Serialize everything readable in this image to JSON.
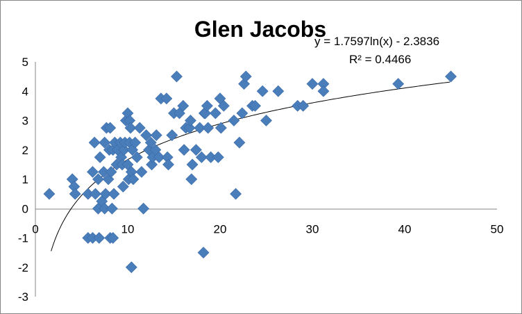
{
  "chart_data": {
    "type": "scatter",
    "title": "Glen Jacobs",
    "xlabel": "",
    "ylabel": "",
    "xlim": [
      0,
      50
    ],
    "ylim": [
      -3,
      5
    ],
    "x_ticks": [
      "0",
      "10",
      "20",
      "30",
      "40",
      "50"
    ],
    "y_ticks": [
      "5",
      "4",
      "3",
      "2",
      "1",
      "0",
      "-1",
      "-2",
      "-3"
    ],
    "grid": false,
    "legend": "none",
    "marker_color": "#4a7ebb",
    "trendline": {
      "type": "logarithmic",
      "a": 1.7597,
      "b": -2.3836,
      "x_range": [
        1.7,
        44.9
      ],
      "equation_label": "y = 1.7597ln(x) - 2.3836",
      "r2_label": "R² = 0.4466"
    },
    "points": [
      [
        1.5,
        0.5
      ],
      [
        4.0,
        1.0
      ],
      [
        4.2,
        0.75
      ],
      [
        4.3,
        0.5
      ],
      [
        5.7,
        0.5
      ],
      [
        5.7,
        -1.0
      ],
      [
        6.2,
        1.25
      ],
      [
        6.2,
        -1.0
      ],
      [
        6.4,
        2.25
      ],
      [
        6.5,
        0.5
      ],
      [
        6.8,
        1.0
      ],
      [
        6.8,
        0.0
      ],
      [
        6.9,
        -1.0
      ],
      [
        7.0,
        1.75
      ],
      [
        7.2,
        0.25
      ],
      [
        7.4,
        1.25
      ],
      [
        7.5,
        0.0
      ],
      [
        7.5,
        2.25
      ],
      [
        7.6,
        0.5
      ],
      [
        7.7,
        2.75
      ],
      [
        7.9,
        1.0
      ],
      [
        8.0,
        2.0
      ],
      [
        8.1,
        2.75
      ],
      [
        8.1,
        -1.0
      ],
      [
        8.2,
        1.25
      ],
      [
        8.3,
        0.0
      ],
      [
        8.4,
        2.0
      ],
      [
        8.4,
        -1.0
      ],
      [
        8.5,
        0.5
      ],
      [
        8.6,
        2.25
      ],
      [
        8.8,
        1.5
      ],
      [
        8.9,
        2.0
      ],
      [
        9.2,
        2.25
      ],
      [
        9.3,
        1.75
      ],
      [
        9.4,
        1.5
      ],
      [
        9.5,
        0.75
      ],
      [
        9.6,
        2.0
      ],
      [
        9.7,
        2.25
      ],
      [
        9.8,
        3.0
      ],
      [
        10.0,
        3.25
      ],
      [
        10.0,
        1.5
      ],
      [
        10.1,
        1.0
      ],
      [
        10.2,
        2.25
      ],
      [
        10.2,
        3.0
      ],
      [
        10.3,
        2.75
      ],
      [
        10.4,
        1.25
      ],
      [
        10.4,
        -2.0
      ],
      [
        10.5,
        2.0
      ],
      [
        10.6,
        1.0
      ],
      [
        10.8,
        2.25
      ],
      [
        11.0,
        1.75
      ],
      [
        11.3,
        2.75
      ],
      [
        11.5,
        1.25
      ],
      [
        11.7,
        0.0
      ],
      [
        12.0,
        2.5
      ],
      [
        12.3,
        2.0
      ],
      [
        12.5,
        2.25
      ],
      [
        12.6,
        1.5
      ],
      [
        12.7,
        1.75
      ],
      [
        13.0,
        2.0
      ],
      [
        13.1,
        2.5
      ],
      [
        13.4,
        1.75
      ],
      [
        13.6,
        3.75
      ],
      [
        14.2,
        3.75
      ],
      [
        14.3,
        1.75
      ],
      [
        14.4,
        1.5
      ],
      [
        14.8,
        2.5
      ],
      [
        15.0,
        3.25
      ],
      [
        15.3,
        4.5
      ],
      [
        15.6,
        3.25
      ],
      [
        16.0,
        3.5
      ],
      [
        16.1,
        2.0
      ],
      [
        16.3,
        2.75
      ],
      [
        16.7,
        2.75
      ],
      [
        16.8,
        3.0
      ],
      [
        16.9,
        1.0
      ],
      [
        17.0,
        1.5
      ],
      [
        17.4,
        2.0
      ],
      [
        17.8,
        2.75
      ],
      [
        18.0,
        1.75
      ],
      [
        18.2,
        -1.5
      ],
      [
        18.3,
        3.25
      ],
      [
        18.4,
        3.25
      ],
      [
        18.6,
        3.5
      ],
      [
        18.7,
        2.75
      ],
      [
        19.0,
        1.75
      ],
      [
        19.5,
        3.25
      ],
      [
        19.8,
        1.75
      ],
      [
        20.0,
        3.75
      ],
      [
        20.1,
        2.75
      ],
      [
        20.4,
        3.5
      ],
      [
        21.5,
        3.0
      ],
      [
        21.7,
        0.5
      ],
      [
        22.1,
        2.25
      ],
      [
        22.4,
        3.25
      ],
      [
        22.6,
        4.25
      ],
      [
        22.8,
        4.5
      ],
      [
        23.5,
        3.5
      ],
      [
        23.8,
        3.5
      ],
      [
        24.6,
        4.0
      ],
      [
        25.0,
        3.0
      ],
      [
        26.3,
        4.0
      ],
      [
        28.4,
        3.5
      ],
      [
        29.0,
        3.5
      ],
      [
        30.0,
        4.25
      ],
      [
        31.2,
        4.25
      ],
      [
        31.2,
        4.0
      ],
      [
        39.3,
        4.25
      ],
      [
        45.0,
        4.5
      ]
    ]
  }
}
